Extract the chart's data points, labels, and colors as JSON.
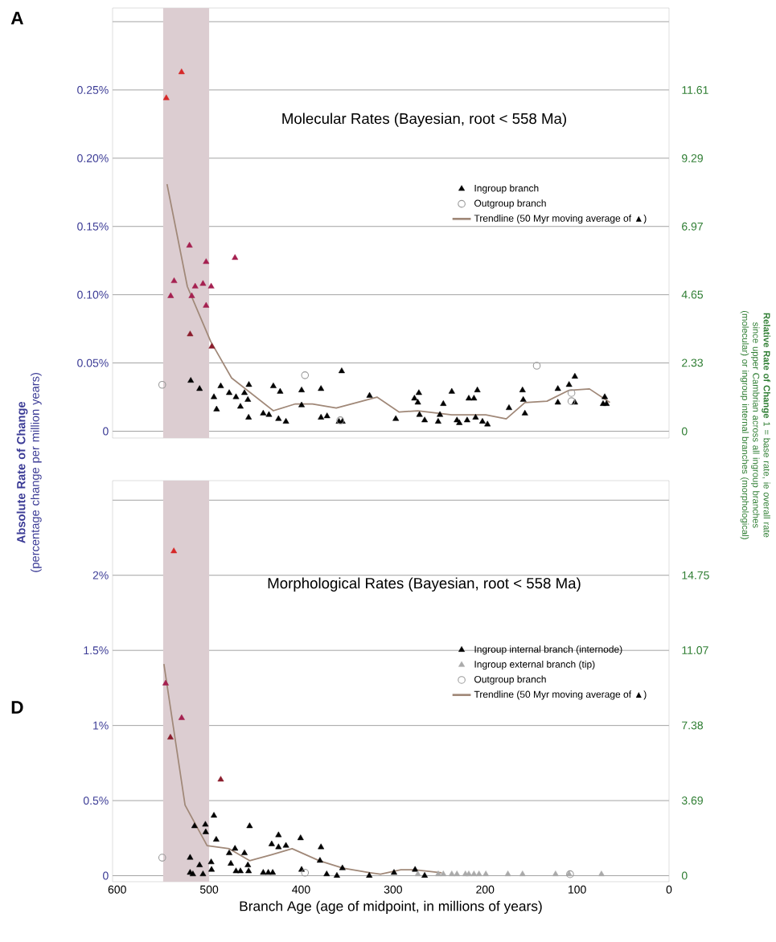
{
  "chart_data": [
    {
      "type": "scatter",
      "title": "Molecular Rates (Bayesian, root < 558 Ma)",
      "ylabel": "**Absolute Rate of Change** (percentage change per million years)",
      "y2label": "**Relative Rate of Change** 1 = base rate, ie overall rate since upper Cambrian across all ingroup branches (molecular) or ingroup internal branches (morphological)",
      "annotations": [
        "A"
      ],
      "xlim": [
        605,
        0
      ],
      "ylim": [
        -0.005,
        0.31
      ],
      "yticks": [
        0,
        {
          "value": 0.05,
          "label": "0.05%"
        },
        {
          "value": 0.1,
          "label": "0.10%"
        },
        {
          "value": 0.15,
          "label": "0.15%"
        },
        {
          "value": 0.2,
          "label": "0.20%"
        },
        {
          "value": 0.25,
          "label": "0.25%"
        },
        {
          "value": 0.3,
          "label": null
        }
      ],
      "y2lim": [
        -0.23,
        14.4
      ],
      "y2ticks": [
        0,
        2.33,
        4.65,
        6.97,
        9.29,
        11.61
      ],
      "grid": "y",
      "legend": "right",
      "tick_labels": "y",
      "bands": [
        {
          "axis": "x",
          "from": 550,
          "to": 500,
          "color": "#dccdd1"
        }
      ],
      "series": [
        {
          "name": "Ingroup branch",
          "type": "scatter",
          "marker": "triangle",
          "color": "#000000",
          "x": [
            546.6,
            530,
            521.4,
            503.3,
            538.1,
            541.8,
            515.2,
            506.7,
            497.8,
            518.9,
            503.3,
            471.9,
            520.7,
            497.1,
            520,
            510.4,
            494.8,
            491.9,
            487.4,
            478.2,
            470.8,
            466,
            461.6,
            457.9,
            456.8,
            457.1,
            441.2,
            435,
            430.2,
            424.6,
            422.8,
            416.5,
            399.5,
            399.5,
            378.4,
            378.4,
            371.8,
            358.9,
            355.1,
            355.9,
            325.6,
            297.1,
            276.8,
            272,
            273.1,
            271.3,
            265.7,
            251,
            249.1,
            245.4,
            236.2,
            230.6,
            228,
            219.5,
            217.7,
            212.1,
            208.4,
            210.3,
            202.9,
            197.4,
            174,
            159.3,
            158.5,
            156.7,
            120.9,
            120.9,
            108.7,
            102.4,
            102.4,
            69.9,
            71.7,
            68
          ],
          "values": [
            0.244,
            0.263,
            0.136,
            0.124,
            0.11,
            0.099,
            0.106,
            0.108,
            0.106,
            0.099,
            0.092,
            0.127,
            0.071,
            0.062,
            0.037,
            0.031,
            0.025,
            0.016,
            0.033,
            0.028,
            0.025,
            0.018,
            0.028,
            0.023,
            0.034,
            0.01,
            0.013,
            0.012,
            0.033,
            0.009,
            0.029,
            0.007,
            0.03,
            0.019,
            0.031,
            0.01,
            0.011,
            0.007,
            0.007,
            0.044,
            0.026,
            0.009,
            0.024,
            0.028,
            0.021,
            0.012,
            0.008,
            0.007,
            0.012,
            0.02,
            0.029,
            0.008,
            0.006,
            0.008,
            0.024,
            0.024,
            0.03,
            0.01,
            0.007,
            0.005,
            0.017,
            0.03,
            0.023,
            0.013,
            0.031,
            0.021,
            0.034,
            0.04,
            0.021,
            0.025,
            0.02,
            0.02
          ],
          "colors": [
            "#d62828",
            "#d62828",
            "#a52050",
            "#a52050",
            "#a52050",
            "#a52050",
            "#a52050",
            "#a52050",
            "#a52050",
            "#a52050",
            "#a52050",
            "#a52050",
            "#8b1c2c",
            "#8b1c2c",
            "#000000",
            "#000000",
            "#000000",
            "#000000",
            "#000000",
            "#000000",
            "#000000",
            "#000000",
            "#000000",
            "#000000",
            "#000000",
            "#000000",
            "#000000",
            "#000000",
            "#000000",
            "#000000",
            "#000000",
            "#000000",
            "#000000",
            "#000000",
            "#000000",
            "#000000",
            "#000000",
            "#000000",
            "#000000",
            "#000000",
            "#000000",
            "#000000",
            "#000000",
            "#000000",
            "#000000",
            "#000000",
            "#000000",
            "#000000",
            "#000000",
            "#000000",
            "#000000",
            "#000000",
            "#000000",
            "#000000",
            "#000000",
            "#000000",
            "#000000",
            "#000000",
            "#000000",
            "#000000",
            "#000000",
            "#000000",
            "#000000",
            "#000000",
            "#000000",
            "#000000",
            "#000000",
            "#000000",
            "#000000",
            "#000000",
            "#000000",
            "#000000"
          ]
        },
        {
          "name": "Outgroup branch",
          "type": "scatter",
          "marker": "circle",
          "color": "#999999",
          "x": [
            551,
            395.8,
            357.4,
            143.8,
            106.1,
            106.1
          ],
          "values": [
            0.034,
            0.041,
            0.008,
            0.048,
            0.028,
            0.022
          ]
        },
        {
          "name": "Trendline (50 Myr moving average of ▲)",
          "type": "line",
          "marker": "none",
          "color": "#a08878",
          "x": [
            545.8,
            523.7,
            498.5,
            475.6,
            430.2,
            406.2,
            387.7,
            361.8,
            339.6,
            317.5,
            293.4,
            273.1,
            236.2,
            199.2,
            177.0,
            156.7,
            132.7,
            108.7,
            86.5,
            64.3
          ],
          "values": [
            0.181,
            0.106,
            0.066,
            0.039,
            0.015,
            0.02,
            0.02,
            0.017,
            0.021,
            0.025,
            0.014,
            0.015,
            0.012,
            0.012,
            0.009,
            0.021,
            0.022,
            0.03,
            0.031,
            0.021
          ]
        }
      ]
    },
    {
      "type": "scatter",
      "title": "Morphological Rates (Bayesian, root < 558 Ma)",
      "xlabel": "Branch Age (age of midpoint, in millions of years)",
      "annotations": [
        "D"
      ],
      "xlim": [
        605,
        0
      ],
      "xticks": [
        600,
        500,
        400,
        300,
        200,
        100,
        0
      ],
      "ylim": [
        -0.04,
        2.63
      ],
      "yticks": [
        0,
        {
          "value": 0.5,
          "label": "0.5%"
        },
        {
          "value": 1,
          "label": "1%"
        },
        {
          "value": 1.5,
          "label": "1.5%"
        },
        {
          "value": 2,
          "label": "2%"
        },
        {
          "value": 2.5,
          "label": null
        }
      ],
      "y2lim": [
        -0.3,
        19.4
      ],
      "y2ticks": [
        0,
        3.69,
        7.38,
        11.07,
        14.75
      ],
      "grid": "y",
      "legend": "right",
      "bands": [
        {
          "axis": "x",
          "from": 550,
          "to": 500,
          "color": "#dccdd1"
        }
      ],
      "series": [
        {
          "name": "Ingroup internal branch (internode)",
          "type": "scatter",
          "marker": "triangle",
          "color": "#000000",
          "x": [
            538.4,
            547.3,
            529.9,
            542.1,
            487.4,
            494.8,
            515.9,
            504.1,
            503.7,
            492.3,
            456,
            520.7,
            510.4,
            497.8,
            497.4,
            520.7,
            517.7,
            506.7,
            478.2,
            471.9,
            476.4,
            470.8,
            466,
            461.6,
            457.9,
            457.1,
            441.2,
            435.7,
            430.9,
            432,
            424.6,
            424.6,
            416.5,
            400.6,
            399.5,
            378.4,
            379.5,
            372.2,
            361.1,
            355.1,
            325.9,
            299,
            276.1,
            265.7
          ],
          "values": [
            2.16,
            1.28,
            1.05,
            0.92,
            0.64,
            0.4,
            0.33,
            0.34,
            0.29,
            0.24,
            0.33,
            0.12,
            0.07,
            0.09,
            0.04,
            0.02,
            0.01,
            0.01,
            0.15,
            0.18,
            0.08,
            0.03,
            0.03,
            0.15,
            0.07,
            0.03,
            0.02,
            0.02,
            0.02,
            0.21,
            0.27,
            0.19,
            0.2,
            0.25,
            0.04,
            0.19,
            0.1,
            0.01,
            0,
            0.05,
            0,
            0.02,
            0.04,
            0
          ],
          "colors": [
            "#d62828",
            "#a52050",
            "#a52050",
            "#8b1c2c",
            "#8b1c2c",
            "#000000",
            "#000000",
            "#000000",
            "#000000",
            "#000000",
            "#000000",
            "#000000",
            "#000000",
            "#000000",
            "#000000",
            "#000000",
            "#000000",
            "#000000",
            "#000000",
            "#000000",
            "#000000",
            "#000000",
            "#000000",
            "#000000",
            "#000000",
            "#000000",
            "#000000",
            "#000000",
            "#000000",
            "#000000",
            "#000000",
            "#000000",
            "#000000",
            "#000000",
            "#000000",
            "#000000",
            "#000000",
            "#000000",
            "#000000",
            "#000000",
            "#000000",
            "#000000",
            "#000000",
            "#000000"
          ]
        },
        {
          "name": "Ingroup external branch (tip)",
          "type": "scatter",
          "marker": "triangle",
          "color": "#aaaaaa",
          "x": [
            273.1,
            250.9,
            245.4,
            236.2,
            230.6,
            221.4,
            217.7,
            212.1,
            206.6,
            199.2,
            175.2,
            159.3,
            123.4,
            108.7,
            73.5
          ],
          "values": [
            0.01,
            0.01,
            0.01,
            0.01,
            0.01,
            0.01,
            0.01,
            0.01,
            0.01,
            0.01,
            0.01,
            0.01,
            0.01,
            0.01,
            0.01
          ]
        },
        {
          "name": "Outgroup branch",
          "type": "scatter",
          "marker": "circle",
          "color": "#999999",
          "x": [
            551,
            395.8,
            107.6
          ],
          "values": [
            0.12,
            0.02,
            0.01
          ]
        },
        {
          "name": "Trendline (50 Myr moving average of ▲)",
          "type": "line",
          "marker": "none",
          "color": "#a08878",
          "x": [
            549.2,
            526.2,
            502.2,
            478.2,
            456,
            432,
            409.8,
            380.3,
            354.4,
            324.8,
            313.8,
            291.6,
            276.8,
            247.2
          ],
          "values": [
            1.41,
            0.47,
            0.2,
            0.18,
            0.1,
            0.14,
            0.18,
            0.1,
            0.05,
            0.02,
            0.01,
            0.04,
            0.04,
            0.02
          ]
        }
      ]
    }
  ]
}
